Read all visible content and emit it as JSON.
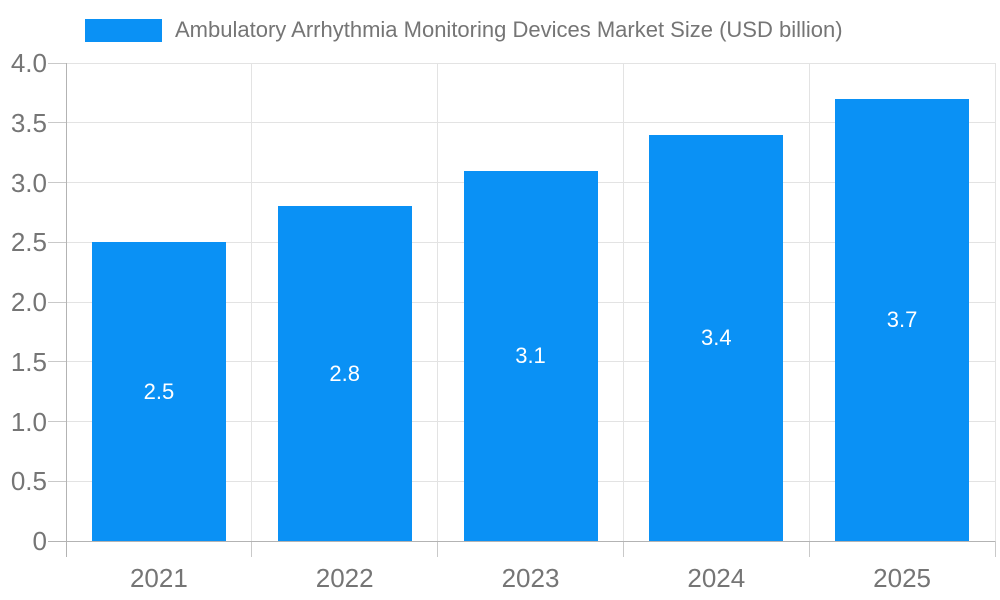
{
  "legend": {
    "label": "Ambulatory Arrhythmia Monitoring Devices Market Size (USD billion)"
  },
  "chart_data": {
    "type": "bar",
    "title": "Ambulatory Arrhythmia Monitoring Devices Market Size (USD billion)",
    "categories": [
      "2021",
      "2022",
      "2023",
      "2024",
      "2025"
    ],
    "values": [
      2.5,
      2.8,
      3.1,
      3.4,
      3.7
    ],
    "bar_labels": [
      "2.5",
      "2.8",
      "3.1",
      "3.4",
      "3.7"
    ],
    "xlabel": "",
    "ylabel": "",
    "ylim": [
      0,
      4.0
    ],
    "ytick_step": 0.5,
    "ytick_labels": [
      "0",
      "0.5",
      "1.0",
      "1.5",
      "2.0",
      "2.5",
      "3.0",
      "3.5",
      "4.0"
    ],
    "grid": true,
    "legend_position": "top-left",
    "colors": {
      "bar": "#0a91f5",
      "grid": "#e3e3e3",
      "axis": "#b3b3b3",
      "tick": "#c9c9c9",
      "text": "#757575",
      "bar_label": "#ffffff",
      "background": "#ffffff"
    }
  }
}
